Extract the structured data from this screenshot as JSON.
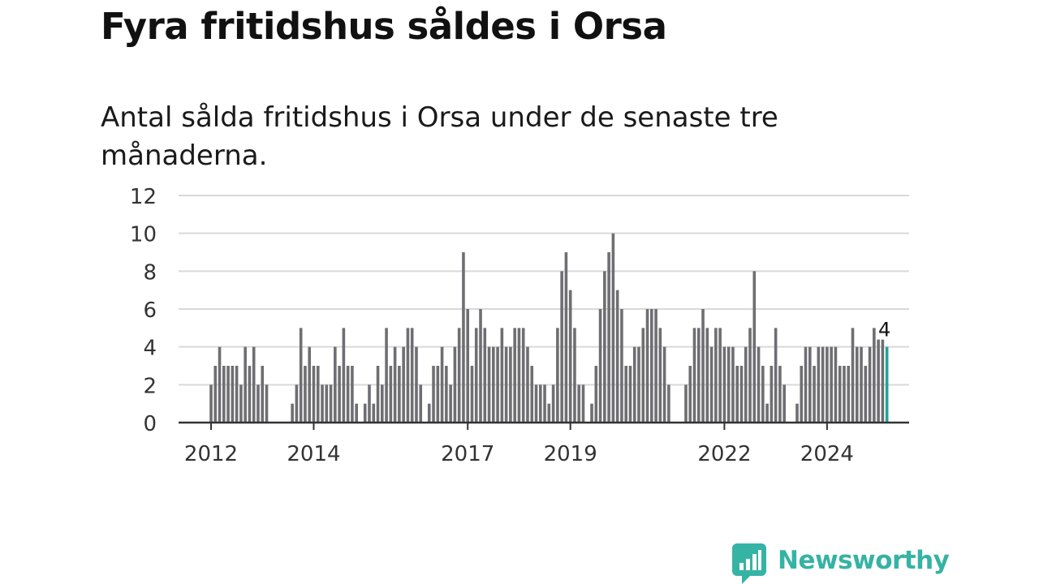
{
  "title": "Fyra fritidshus såldes i Orsa",
  "subtitle": "Antal sålda fritidshus i Orsa under de senaste tre månaderna.",
  "brand": {
    "name": "Newsworthy",
    "icon": "newsworthy-logo-icon",
    "color": "#35b3a4"
  },
  "colors": {
    "bar": "#6e6e73",
    "highlight": "#1fa39a",
    "grid": "#d9d9d9",
    "axis": "#333333"
  },
  "chart_data": {
    "type": "bar",
    "title": "Fyra fritidshus såldes i Orsa",
    "subtitle": "Antal sålda fritidshus i Orsa under de senaste tre månaderna.",
    "xlabel": "",
    "ylabel": "",
    "ylim": [
      0,
      12
    ],
    "yticks": [
      "0",
      "2",
      "4",
      "6",
      "8",
      "10",
      "12"
    ],
    "grid": true,
    "start": "2012-01",
    "xticks": [
      {
        "label": "2012",
        "month": "2012-01"
      },
      {
        "label": "2014",
        "month": "2014-01"
      },
      {
        "label": "2017",
        "month": "2017-01"
      },
      {
        "label": "2019",
        "month": "2019-01"
      },
      {
        "label": "2022",
        "month": "2022-01"
      },
      {
        "label": "2024",
        "month": "2024-01"
      }
    ],
    "values": [
      2,
      3,
      4,
      3,
      3,
      3,
      3,
      2,
      4,
      3,
      4,
      2,
      3,
      2,
      null,
      null,
      null,
      null,
      null,
      1,
      2,
      5,
      3,
      4,
      3,
      3,
      2,
      2,
      2,
      4,
      3,
      5,
      3,
      3,
      1,
      null,
      1,
      2,
      1,
      3,
      2,
      5,
      3,
      4,
      3,
      4,
      5,
      5,
      4,
      2,
      null,
      1,
      3,
      3,
      4,
      3,
      2,
      4,
      5,
      9,
      6,
      3,
      5,
      6,
      5,
      4,
      4,
      4,
      5,
      4,
      4,
      5,
      5,
      5,
      4,
      3,
      2,
      2,
      2,
      1,
      2,
      5,
      8,
      9,
      7,
      5,
      2,
      2,
      null,
      1,
      3,
      6,
      8,
      9,
      10,
      7,
      6,
      3,
      3,
      4,
      4,
      5,
      6,
      6,
      6,
      5,
      4,
      2,
      null,
      null,
      null,
      2,
      3,
      5,
      5,
      6,
      5,
      4,
      5,
      5,
      4,
      4,
      4,
      3,
      3,
      4,
      5,
      8,
      4,
      3,
      1,
      3,
      5,
      3,
      2,
      null,
      null,
      1,
      3,
      4,
      4,
      3,
      4,
      4,
      4,
      4,
      4,
      3,
      3,
      3,
      5,
      4,
      4,
      3,
      4,
      5,
      5,
      5,
      4
    ],
    "highlight": {
      "month": "2025-03",
      "value": 4,
      "label": "4"
    }
  }
}
